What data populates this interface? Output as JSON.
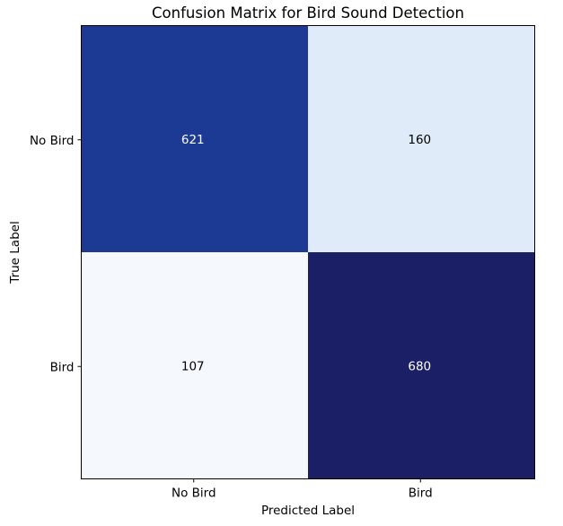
{
  "chart_data": {
    "type": "heatmap",
    "title": "Confusion Matrix for Bird Sound Detection",
    "xlabel": "Predicted Label",
    "ylabel": "True Label",
    "x_categories": [
      "No Bird",
      "Bird"
    ],
    "y_categories": [
      "No Bird",
      "Bird"
    ],
    "values": [
      [
        621,
        160
      ],
      [
        107,
        680
      ]
    ],
    "colormap": "Blues",
    "value_range": [
      107,
      680
    ],
    "grid": false,
    "colors": {
      "cells": [
        [
          "#1c3a94",
          "#dfebf8"
        ],
        [
          "#f5f9fe",
          "#1b1f66"
        ]
      ],
      "text_on_dark": "#ffffff",
      "text_on_light": "#000000",
      "axis": "#000000"
    }
  }
}
